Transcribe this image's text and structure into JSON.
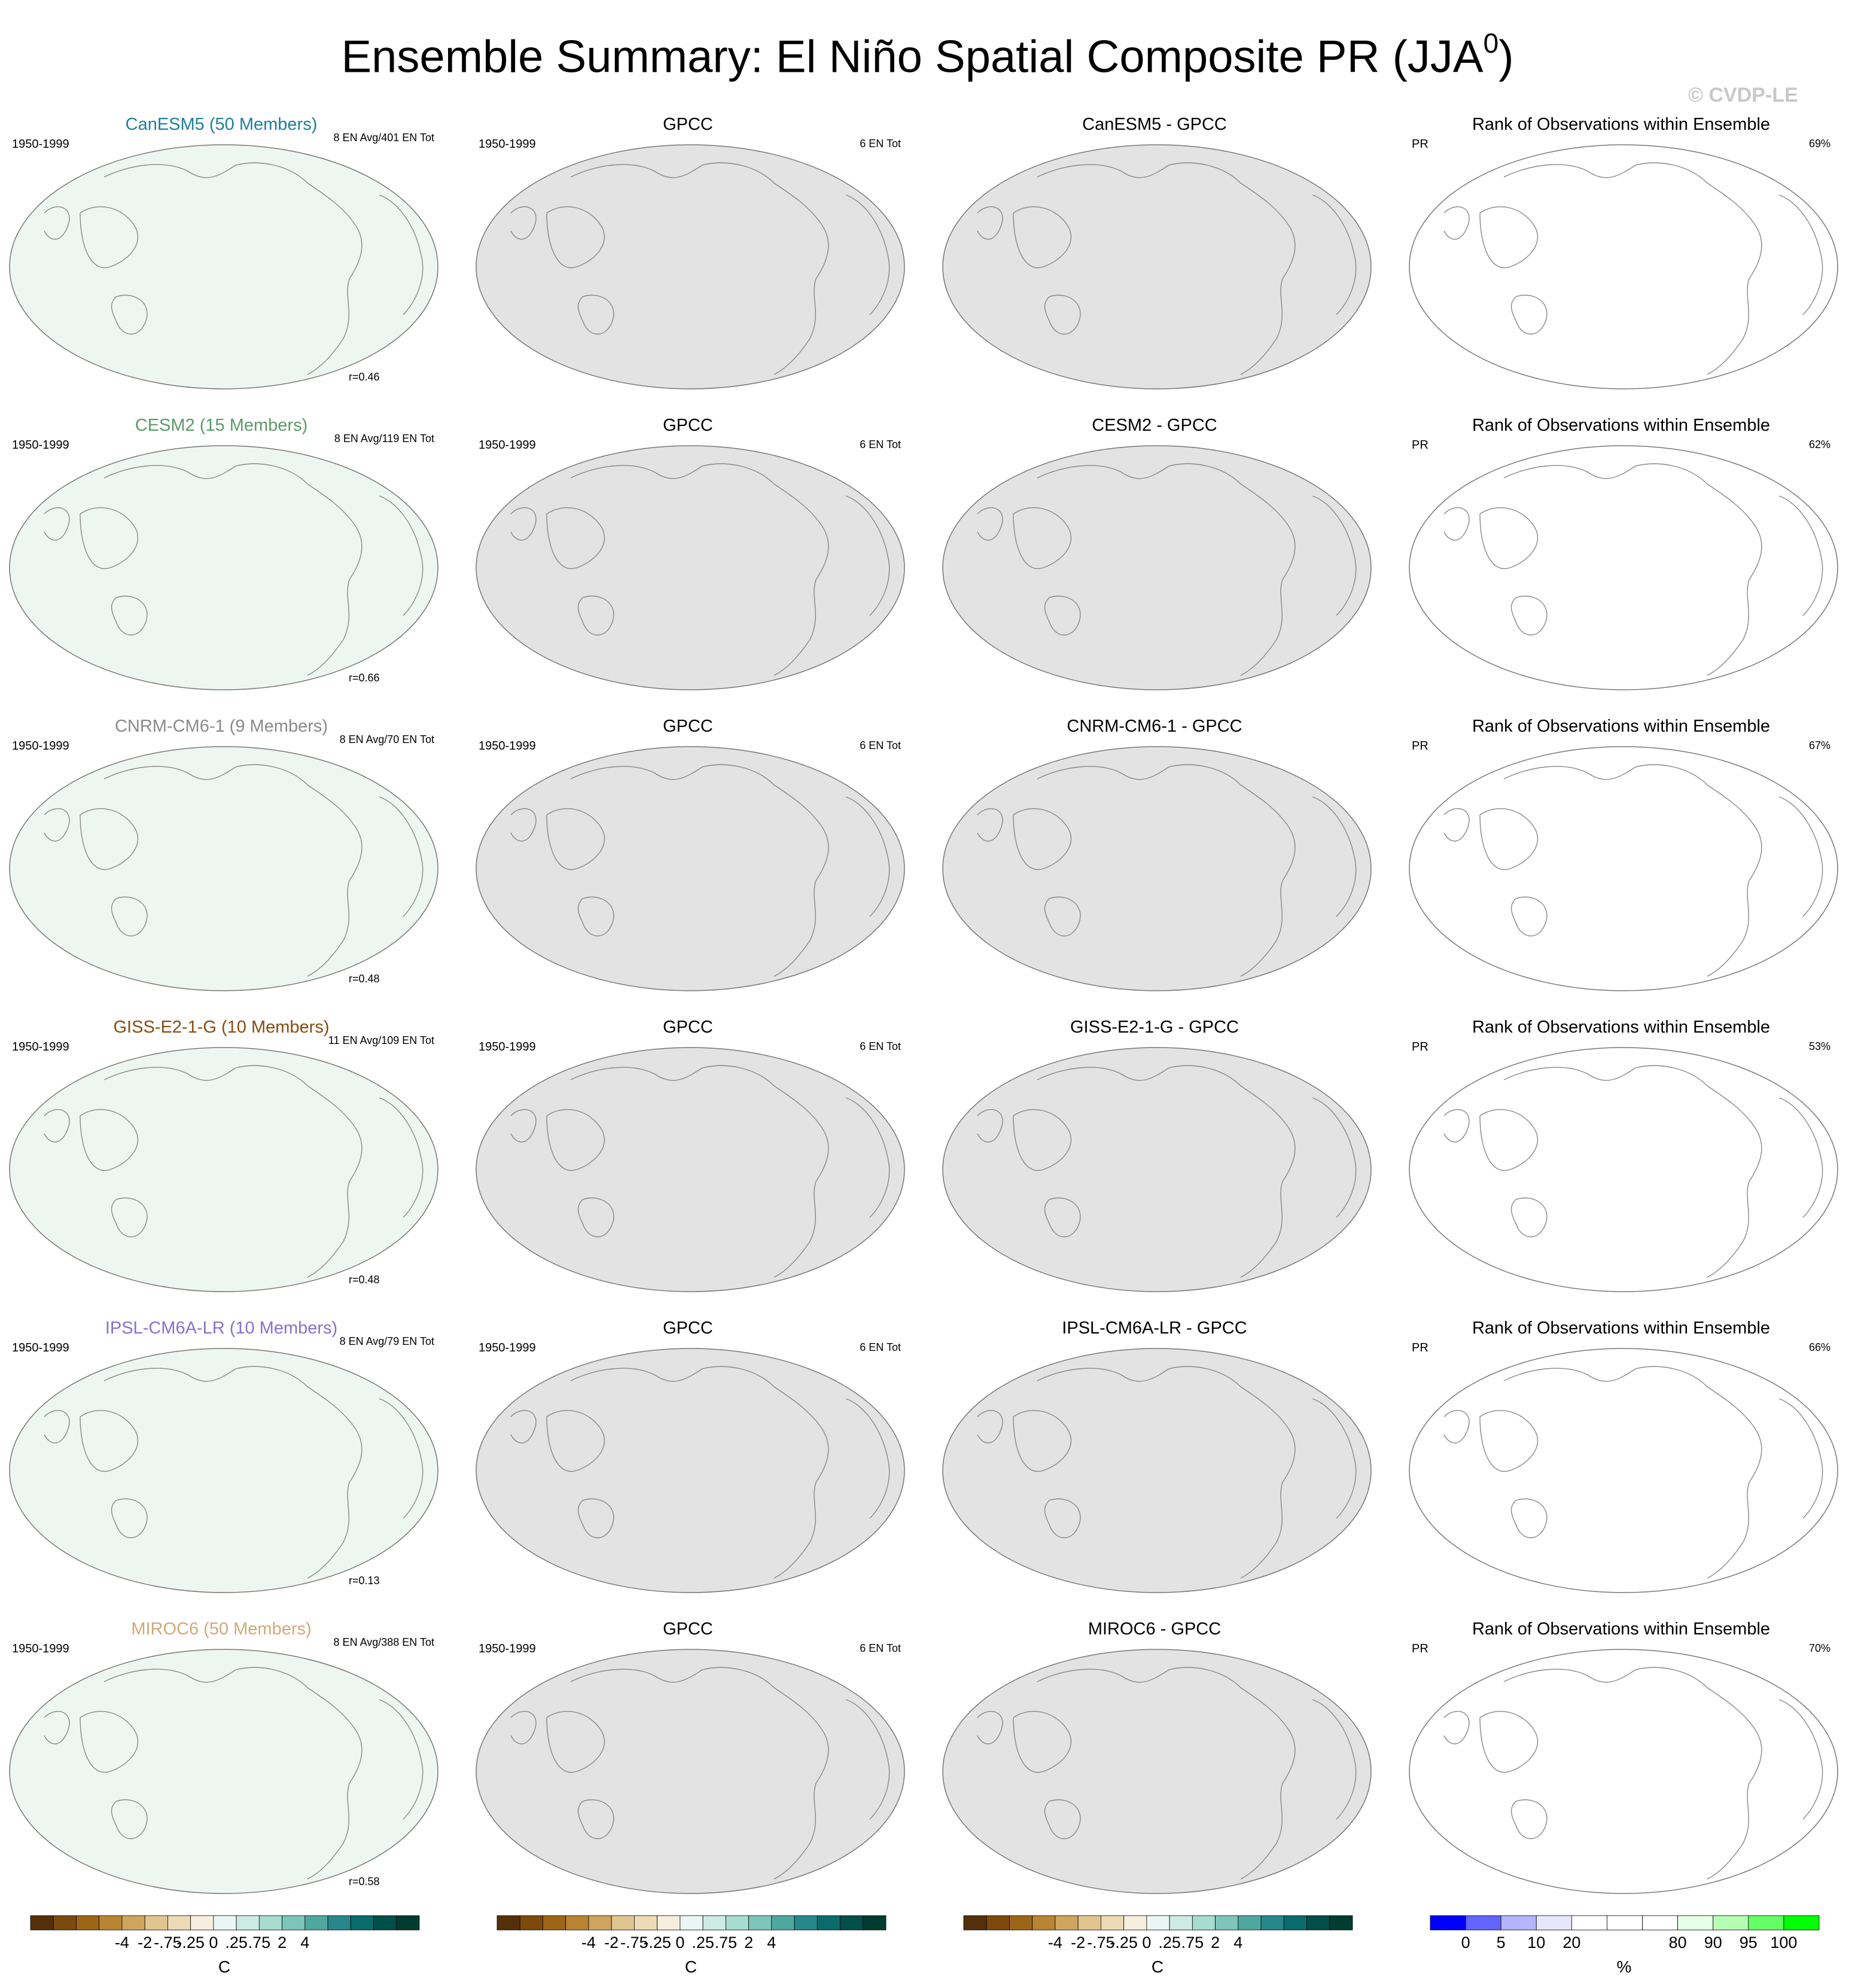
{
  "title": {
    "main": "Ensemble Summary: El Niño Spatial Composite PR (JJA",
    "sup": "0",
    "close": ")"
  },
  "watermark": "© CVDP-LE",
  "obs_name": "GPCC",
  "obs_events": "6 EN Tot",
  "rank_title": "Rank of Observations within Ensemble",
  "rank_var": "PR",
  "period": "1950-1999",
  "rows": [
    {
      "model": "CanESM5",
      "members": "CanESM5 (50 Members)",
      "color": "#1f7f9a",
      "events": "8 EN Avg/401 EN Tot",
      "r": "r=0.46",
      "diff_title": "CanESM5 - GPCC",
      "rank_pct": "69%"
    },
    {
      "model": "CESM2",
      "members": "CESM2 (15 Members)",
      "color": "#5c9a67",
      "events": "8 EN Avg/119 EN Tot",
      "r": "r=0.66",
      "diff_title": "CESM2 - GPCC",
      "rank_pct": "62%"
    },
    {
      "model": "CNRM-CM6-1",
      "members": "CNRM-CM6-1 (9 Members)",
      "color": "#8a8a8a",
      "events": "8 EN Avg/70 EN Tot",
      "r": "r=0.48",
      "diff_title": "CNRM-CM6-1 - GPCC",
      "rank_pct": "67%"
    },
    {
      "model": "GISS-E2-1-G",
      "members": "GISS-E2-1-G (10 Members)",
      "color": "#8a4a10",
      "events": "11 EN Avg/109 EN Tot",
      "r": "r=0.48",
      "diff_title": "GISS-E2-1-G - GPCC",
      "rank_pct": "53%"
    },
    {
      "model": "IPSL-CM6A-LR",
      "members": "IPSL-CM6A-LR (10 Members)",
      "color": "#8a6fcf",
      "events": "8 EN Avg/79 EN Tot",
      "r": "r=0.13",
      "diff_title": "IPSL-CM6A-LR - GPCC",
      "rank_pct": "66%"
    },
    {
      "model": "MIROC6",
      "members": "MIROC6 (50 Members)",
      "color": "#d1a978",
      "events": "8 EN Avg/388 EN Tot",
      "r": "r=0.58",
      "diff_title": "MIROC6 - GPCC",
      "rank_pct": "70%"
    }
  ],
  "colorbar_pr": {
    "unit": "C",
    "labels": [
      "-4",
      "-2",
      "-.75",
      "-.25",
      "0",
      ".25",
      ".75",
      "2",
      "4"
    ],
    "colors": [
      "#54300a",
      "#7d4a0d",
      "#9d6518",
      "#b98532",
      "#cfa55f",
      "#e0c58f",
      "#ecdbb6",
      "#f6efe0",
      "#eaf6f3",
      "#cdebe4",
      "#a8dccf",
      "#7ec6b9",
      "#4fa8a0",
      "#27878a",
      "#0a6b6b",
      "#004f4a",
      "#003c30"
    ]
  },
  "colorbar_rank": {
    "unit": "%",
    "labels": [
      "0",
      "5",
      "10",
      "20",
      "80",
      "90",
      "95",
      "100"
    ],
    "colors": [
      "#0000ff",
      "#6464ff",
      "#b4b4ff",
      "#e6e6ff",
      "#ffffff",
      "#ffffff",
      "#ffffff",
      "#e6ffe6",
      "#b4ffb4",
      "#64ff64",
      "#00ff00"
    ]
  }
}
